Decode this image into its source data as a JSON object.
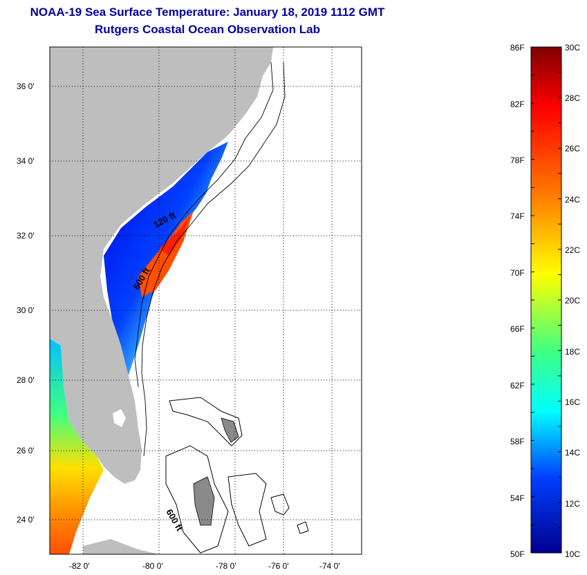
{
  "title": {
    "line1": "NOAA-19 Sea Surface Temperature:  January 18, 2019 1112 GMT",
    "line2": "Rutgers Coastal Ocean Observation Lab"
  },
  "map": {
    "lat_labels": [
      "36 0'",
      "34 0'",
      "32 0'",
      "30 0'",
      "28 0'",
      "26 0'",
      "24 0'"
    ],
    "lon_labels": [
      "-82 0'",
      "-80 0'",
      "-78 0'",
      "-76 0'",
      "-74 0'"
    ],
    "isobath_labels": [
      "120 ft",
      "600 ft",
      "600 ft"
    ],
    "colors": {
      "land": "#bebebe",
      "frame": "#000000"
    }
  },
  "colorbar": {
    "fahrenheit_labels": [
      "86F",
      "82F",
      "78F",
      "74F",
      "70F",
      "66F",
      "62F",
      "58F",
      "54F",
      "50F"
    ],
    "celsius_labels": [
      "30C",
      "28C",
      "26C",
      "24C",
      "22C",
      "20C",
      "18C",
      "16C",
      "14C",
      "12C",
      "10C"
    ],
    "colors": [
      "#800000",
      "#ff0000",
      "#ff8000",
      "#ffff00",
      "#00ffff",
      "#0000ff",
      "#00008f"
    ]
  }
}
